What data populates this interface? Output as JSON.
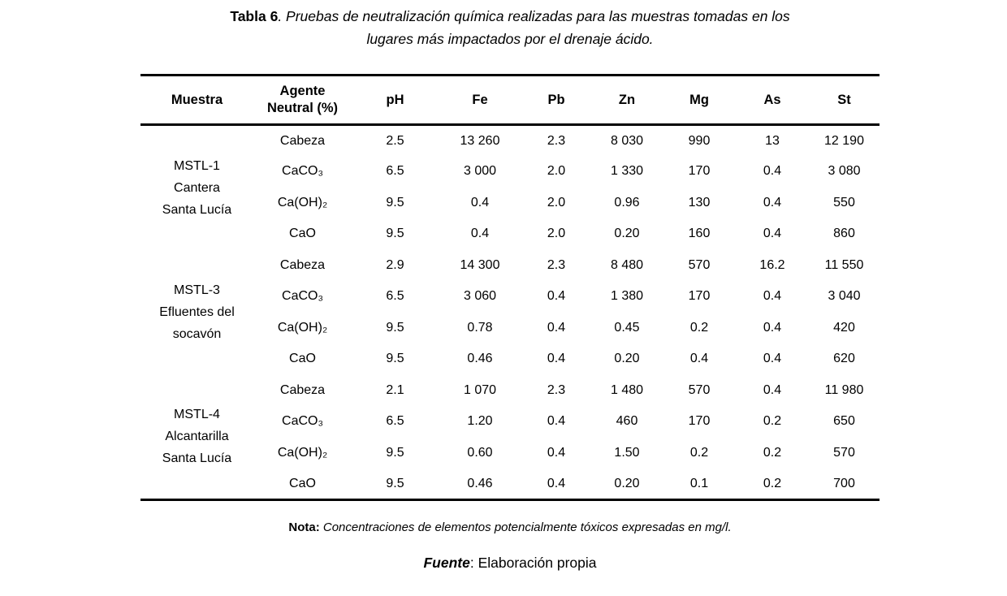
{
  "title": {
    "label": "Tabla 6",
    "line1_rest": ". Pruebas de neutralización química realizadas para las muestras tomadas en los",
    "line2": "lugares más impactados por el drenaje ácido."
  },
  "table": {
    "columns": [
      "Muestra",
      "Agente\nNeutral (%)",
      "pH",
      "Fe",
      "Pb",
      "Zn",
      "Mg",
      "As",
      "St"
    ],
    "groups": [
      {
        "sample": [
          "MSTL-1",
          "Cantera",
          "Santa Lucía"
        ],
        "rows": [
          {
            "agent": "Cabeza",
            "values": [
              "2.5",
              "13 260",
              "2.3",
              "8 030",
              "990",
              "13",
              "12 190"
            ]
          },
          {
            "agent": "CaCO₃",
            "values": [
              "6.5",
              "3 000",
              "2.0",
              "1 330",
              "170",
              "0.4",
              "3 080"
            ]
          },
          {
            "agent": "Ca(OH)₂",
            "values": [
              "9.5",
              "0.4",
              "2.0",
              "0.96",
              "130",
              "0.4",
              "550"
            ]
          },
          {
            "agent": "CaO",
            "values": [
              "9.5",
              "0.4",
              "2.0",
              "0.20",
              "160",
              "0.4",
              "860"
            ]
          }
        ]
      },
      {
        "sample": [
          "MSTL-3",
          "Efluentes del",
          "socavón"
        ],
        "rows": [
          {
            "agent": "Cabeza",
            "values": [
              "2.9",
              "14 300",
              "2.3",
              "8 480",
              "570",
              "16.2",
              "11 550"
            ]
          },
          {
            "agent": "CaCO₃",
            "values": [
              "6.5",
              "3 060",
              "0.4",
              "1 380",
              "170",
              "0.4",
              "3 040"
            ]
          },
          {
            "agent": "Ca(OH)₂",
            "values": [
              "9.5",
              "0.78",
              "0.4",
              "0.45",
              "0.2",
              "0.4",
              "420"
            ]
          },
          {
            "agent": "CaO",
            "values": [
              "9.5",
              "0.46",
              "0.4",
              "0.20",
              "0.4",
              "0.4",
              "620"
            ]
          }
        ]
      },
      {
        "sample": [
          "MSTL-4",
          "Alcantarilla",
          "Santa Lucía"
        ],
        "rows": [
          {
            "agent": "Cabeza",
            "values": [
              "2.1",
              "1 070",
              "2.3",
              "1 480",
              "570",
              "0.4",
              "11 980"
            ]
          },
          {
            "agent": "CaCO₃",
            "values": [
              "6.5",
              "1.20",
              "0.4",
              "460",
              "170",
              "0.2",
              "650"
            ]
          },
          {
            "agent": "Ca(OH)₂",
            "values": [
              "9.5",
              "0.60",
              "0.4",
              "1.50",
              "0.2",
              "0.2",
              "570"
            ]
          },
          {
            "agent": "CaO",
            "values": [
              "9.5",
              "0.46",
              "0.4",
              "0.20",
              "0.1",
              "0.2",
              "700"
            ]
          }
        ]
      }
    ]
  },
  "nota": {
    "label": "Nota:",
    "text": " Concentraciones de elementos potencialmente tóxicos expresadas en mg/l."
  },
  "fuente": {
    "label": "Fuente",
    "text": ": Elaboración propia"
  }
}
